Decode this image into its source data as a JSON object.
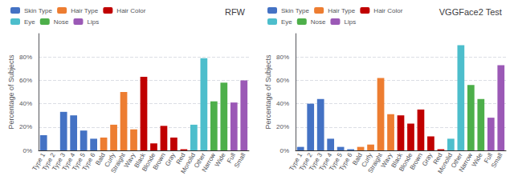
{
  "chart_data": [
    {
      "type": "bar",
      "title": "RFW",
      "y_label": "Percentage of Subjects",
      "categories": [
        "Type 1",
        "Type 2",
        "Type 3",
        "Type 4",
        "Type 5",
        "Type 6",
        "Bald",
        "Curly",
        "Straight",
        "Wavy",
        "Black",
        "Blonde",
        "Brown",
        "Gray",
        "Red",
        "Monolid",
        "Other",
        "Narrow",
        "Wide",
        "Full",
        "Small"
      ],
      "series": [
        {
          "name": "Skin Type",
          "color": "#4472C4",
          "values": [
            13,
            0,
            33,
            30,
            17,
            10,
            null,
            null,
            null,
            null,
            null,
            null,
            null,
            null,
            null,
            null,
            null,
            null,
            null,
            null,
            null
          ]
        },
        {
          "name": "Hair Type",
          "color": "#ED7D31",
          "values": [
            null,
            null,
            null,
            null,
            null,
            null,
            11,
            22,
            50,
            18,
            null,
            null,
            null,
            null,
            null,
            null,
            null,
            null,
            null,
            null,
            null
          ]
        },
        {
          "name": "Hair Color",
          "color": "#C00000",
          "values": [
            null,
            null,
            null,
            null,
            null,
            null,
            null,
            null,
            null,
            null,
            63,
            6,
            21,
            11,
            1,
            null,
            null,
            null,
            null,
            null,
            null
          ]
        },
        {
          "name": "Eye",
          "color": "#4DBECC",
          "values": [
            null,
            null,
            null,
            null,
            null,
            null,
            null,
            null,
            null,
            null,
            null,
            null,
            null,
            null,
            null,
            22,
            79,
            null,
            null,
            null,
            null
          ]
        },
        {
          "name": "Nose",
          "color": "#4DAF4A",
          "values": [
            null,
            null,
            null,
            null,
            null,
            null,
            null,
            null,
            null,
            null,
            null,
            null,
            null,
            null,
            null,
            null,
            null,
            42,
            58,
            null,
            null
          ]
        },
        {
          "name": "Lips",
          "color": "#9B59B6",
          "values": [
            null,
            null,
            null,
            null,
            null,
            null,
            null,
            null,
            null,
            null,
            null,
            null,
            null,
            null,
            null,
            null,
            null,
            null,
            null,
            41,
            60
          ]
        }
      ],
      "ylim": [
        0,
        100
      ],
      "yticks": [
        {
          "value": 0,
          "label": "0%"
        },
        {
          "value": 20,
          "label": "20%"
        },
        {
          "value": 40,
          "label": "40%"
        },
        {
          "value": 60,
          "label": "60%"
        },
        {
          "value": 80,
          "label": "80%"
        }
      ],
      "grid": true,
      "legend": "upper left"
    },
    {
      "type": "bar",
      "title": "VGGFace2 Test",
      "y_label": "Percentage of Subjects",
      "categories": [
        "Type 1",
        "Type 2",
        "Type 3",
        "Type 4",
        "Type 5",
        "Type 6",
        "Bald",
        "Curly",
        "Straight",
        "Wavy",
        "Black",
        "Blonde",
        "Brown",
        "Gray",
        "Red",
        "Monolid",
        "Other",
        "Narrow",
        "Wide",
        "Full",
        "Small"
      ],
      "series": [
        {
          "name": "Skin Type",
          "color": "#4472C4",
          "values": [
            3,
            40,
            44,
            10,
            3,
            1,
            null,
            null,
            null,
            null,
            null,
            null,
            null,
            null,
            null,
            null,
            null,
            null,
            null,
            null,
            null
          ]
        },
        {
          "name": "Hair Type",
          "color": "#ED7D31",
          "values": [
            null,
            null,
            null,
            null,
            null,
            null,
            3,
            5,
            62,
            31,
            null,
            null,
            null,
            null,
            null,
            null,
            null,
            null,
            null,
            null,
            null
          ]
        },
        {
          "name": "Hair Color",
          "color": "#C00000",
          "values": [
            null,
            null,
            null,
            null,
            null,
            null,
            null,
            null,
            null,
            null,
            30,
            23,
            35,
            12,
            1,
            null,
            null,
            null,
            null,
            null,
            null
          ]
        },
        {
          "name": "Eye",
          "color": "#4DBECC",
          "values": [
            null,
            null,
            null,
            null,
            null,
            null,
            null,
            null,
            null,
            null,
            null,
            null,
            null,
            null,
            null,
            10,
            90,
            null,
            null,
            null,
            null
          ]
        },
        {
          "name": "Nose",
          "color": "#4DAF4A",
          "values": [
            null,
            null,
            null,
            null,
            null,
            null,
            null,
            null,
            null,
            null,
            null,
            null,
            null,
            null,
            null,
            null,
            null,
            56,
            44,
            null,
            null
          ]
        },
        {
          "name": "Lips",
          "color": "#9B59B6",
          "values": [
            null,
            null,
            null,
            null,
            null,
            null,
            null,
            null,
            null,
            null,
            null,
            null,
            null,
            null,
            null,
            null,
            null,
            null,
            null,
            28,
            73
          ]
        }
      ],
      "ylim": [
        0,
        100
      ],
      "yticks": [
        {
          "value": 0,
          "label": "0%"
        },
        {
          "value": 20,
          "label": "20%"
        },
        {
          "value": 40,
          "label": "40%"
        },
        {
          "value": 60,
          "label": "60%"
        },
        {
          "value": 80,
          "label": "80%"
        }
      ],
      "grid": true,
      "legend": "upper left"
    }
  ]
}
